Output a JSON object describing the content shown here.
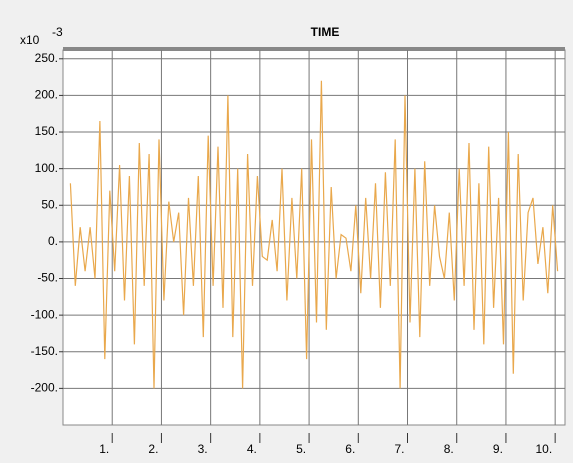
{
  "chart_data": {
    "type": "line",
    "title": "TIME",
    "scale_label": "x10",
    "scale_exponent": "-3",
    "x": [
      0.15,
      0.25,
      0.35,
      0.45,
      0.55,
      0.65,
      0.75,
      0.85,
      0.95,
      1.05,
      1.15,
      1.25,
      1.35,
      1.45,
      1.55,
      1.65,
      1.75,
      1.85,
      1.95,
      2.05,
      2.15,
      2.25,
      2.35,
      2.45,
      2.55,
      2.65,
      2.75,
      2.85,
      2.95,
      3.05,
      3.15,
      3.25,
      3.35,
      3.45,
      3.55,
      3.65,
      3.75,
      3.85,
      3.95,
      4.05,
      4.15,
      4.25,
      4.35,
      4.45,
      4.55,
      4.65,
      4.75,
      4.85,
      4.95,
      5.05,
      5.15,
      5.25,
      5.35,
      5.45,
      5.55,
      5.65,
      5.75,
      5.85,
      5.95,
      6.05,
      6.15,
      6.25,
      6.35,
      6.45,
      6.55,
      6.65,
      6.75,
      6.85,
      6.95,
      7.05,
      7.15,
      7.25,
      7.35,
      7.45,
      7.55,
      7.65,
      7.75,
      7.85,
      7.95,
      8.05,
      8.15,
      8.25,
      8.35,
      8.45,
      8.55,
      8.65,
      8.75,
      8.85,
      8.95,
      9.05,
      9.15,
      9.25,
      9.35,
      9.45,
      9.55,
      9.65,
      9.75,
      9.85,
      9.95,
      10.05
    ],
    "series": [
      {
        "color": "#e9a84c",
        "values": [
          80,
          -60,
          20,
          -40,
          20,
          -50,
          165,
          -160,
          70,
          -40,
          105,
          -80,
          90,
          -140,
          135,
          -60,
          120,
          -200,
          140,
          -80,
          55,
          0,
          40,
          -100,
          60,
          -60,
          90,
          -130,
          145,
          -60,
          130,
          -90,
          200,
          -130,
          100,
          -200,
          120,
          -60,
          90,
          -20,
          -25,
          30,
          -40,
          100,
          -80,
          60,
          -50,
          100,
          -160,
          140,
          -110,
          220,
          -120,
          75,
          -50,
          10,
          5,
          -40,
          50,
          -70,
          60,
          -50,
          80,
          -90,
          95,
          -60,
          140,
          -200,
          200,
          -110,
          100,
          -130,
          110,
          -60,
          50,
          -20,
          -50,
          40,
          -80,
          100,
          -60,
          135,
          -120,
          80,
          -140,
          130,
          -90,
          60,
          -140,
          150,
          -180,
          120,
          -80,
          40,
          60,
          -30,
          20,
          -70,
          50,
          -40
        ]
      }
    ],
    "xlim": [
      0,
      10.2
    ],
    "ylim": [
      -250,
      262
    ],
    "xticks": [
      {
        "value": 1,
        "label": "1."
      },
      {
        "value": 2,
        "label": "2."
      },
      {
        "value": 3,
        "label": "3."
      },
      {
        "value": 4,
        "label": "4."
      },
      {
        "value": 5,
        "label": "5."
      },
      {
        "value": 6,
        "label": "6."
      },
      {
        "value": 7,
        "label": "7."
      },
      {
        "value": 8,
        "label": "8."
      },
      {
        "value": 9,
        "label": "9."
      },
      {
        "value": 10,
        "label": "10."
      }
    ],
    "yticks": [
      {
        "value": -200,
        "label": "-200."
      },
      {
        "value": -150,
        "label": "-150."
      },
      {
        "value": -100,
        "label": "-100."
      },
      {
        "value": -50,
        "label": "-50."
      },
      {
        "value": 0,
        "label": "0."
      },
      {
        "value": 50,
        "label": "50."
      },
      {
        "value": 100,
        "label": "100."
      },
      {
        "value": 150,
        "label": "150."
      },
      {
        "value": 200,
        "label": "200."
      },
      {
        "value": 250,
        "label": "250."
      }
    ],
    "grid": true
  }
}
